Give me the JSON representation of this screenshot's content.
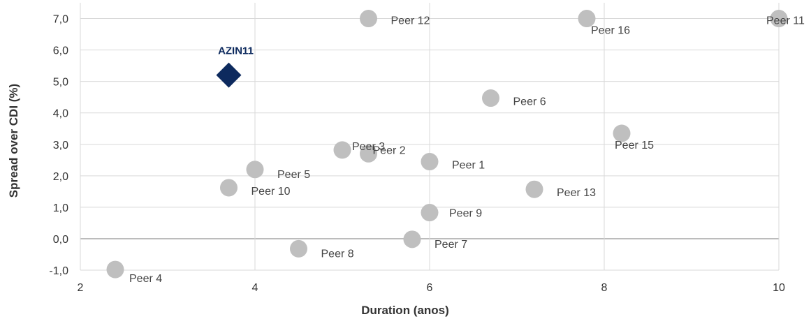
{
  "chart_data": {
    "type": "scatter",
    "xlabel": "Duration (anos)",
    "ylabel": "Spread over CDI (%)",
    "xlim": [
      2,
      10
    ],
    "ylim": [
      -1,
      7.5
    ],
    "xticks": [
      2,
      4,
      6,
      8,
      10
    ],
    "xtick_labels": [
      "2",
      "4",
      "6",
      "8",
      "10"
    ],
    "yticks": [
      -1,
      0,
      1,
      2,
      3,
      4,
      5,
      6,
      7
    ],
    "ytick_labels": [
      "-1,0",
      "0,0",
      "1,0",
      "2,0",
      "3,0",
      "4,0",
      "5,0",
      "6,0",
      "7,0"
    ],
    "grid": true,
    "series": [
      {
        "name": "AZIN11",
        "marker": "diamond",
        "color": "#0d2a5e",
        "points": [
          {
            "label": "AZIN11",
            "x": 3.7,
            "y": 5.2
          }
        ]
      },
      {
        "name": "Peers",
        "marker": "circle",
        "color": "#bfbfbf",
        "points": [
          {
            "label": "Peer 1",
            "x": 6.0,
            "y": 2.45
          },
          {
            "label": "Peer 2",
            "x": 5.3,
            "y": 2.7
          },
          {
            "label": "Peer 3",
            "x": 5.0,
            "y": 2.82
          },
          {
            "label": "Peer 4",
            "x": 2.4,
            "y": -0.98
          },
          {
            "label": "Peer 5",
            "x": 4.0,
            "y": 2.2
          },
          {
            "label": "Peer 6",
            "x": 6.7,
            "y": 4.47
          },
          {
            "label": "Peer 7",
            "x": 5.8,
            "y": -0.02
          },
          {
            "label": "Peer 8",
            "x": 4.5,
            "y": -0.32
          },
          {
            "label": "Peer 9",
            "x": 6.0,
            "y": 0.83
          },
          {
            "label": "Peer 10",
            "x": 3.7,
            "y": 1.62
          },
          {
            "label": "Peer 11",
            "x": 10.0,
            "y": 7.0
          },
          {
            "label": "Peer 12",
            "x": 5.3,
            "y": 7.0
          },
          {
            "label": "Peer 13",
            "x": 7.2,
            "y": 1.57
          },
          {
            "label": "Peer 15",
            "x": 8.2,
            "y": 3.35
          },
          {
            "label": "Peer 16",
            "x": 7.8,
            "y": 7.0
          }
        ]
      }
    ]
  }
}
